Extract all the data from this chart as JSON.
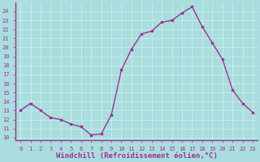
{
  "x": [
    0,
    1,
    2,
    3,
    4,
    5,
    6,
    7,
    8,
    9,
    10,
    11,
    12,
    13,
    14,
    15,
    16,
    17,
    18,
    19,
    20,
    21,
    22,
    23
  ],
  "y": [
    13.0,
    13.8,
    13.0,
    12.2,
    12.0,
    11.5,
    11.2,
    10.3,
    10.4,
    12.5,
    17.5,
    19.8,
    21.5,
    21.8,
    22.8,
    23.0,
    23.8,
    24.5,
    22.3,
    20.5,
    18.7,
    15.3,
    13.8,
    12.8
  ],
  "line_color": "#993399",
  "marker": "s",
  "markersize": 2.0,
  "linewidth": 1.0,
  "xlabel": "Windchill (Refroidissement éolien,°C)",
  "xlabel_fontsize": 6.5,
  "ylabel_ticks": [
    10,
    11,
    12,
    13,
    14,
    15,
    16,
    17,
    18,
    19,
    20,
    21,
    22,
    23,
    24
  ],
  "xtick_labels": [
    "0",
    "1",
    "2",
    "3",
    "4",
    "5",
    "6",
    "7",
    "8",
    "9",
    "10",
    "11",
    "12",
    "13",
    "14",
    "15",
    "16",
    "17",
    "18",
    "19",
    "20",
    "21",
    "22",
    "23"
  ],
  "ylim": [
    9.7,
    25.0
  ],
  "xlim": [
    -0.5,
    23.5
  ],
  "bg_color": "#aadddd",
  "grid_color": "#bbeeee",
  "tick_color": "#993399",
  "tick_fontsize": 5.0,
  "xlabel_color": "#993399",
  "spine_color": "#993399"
}
